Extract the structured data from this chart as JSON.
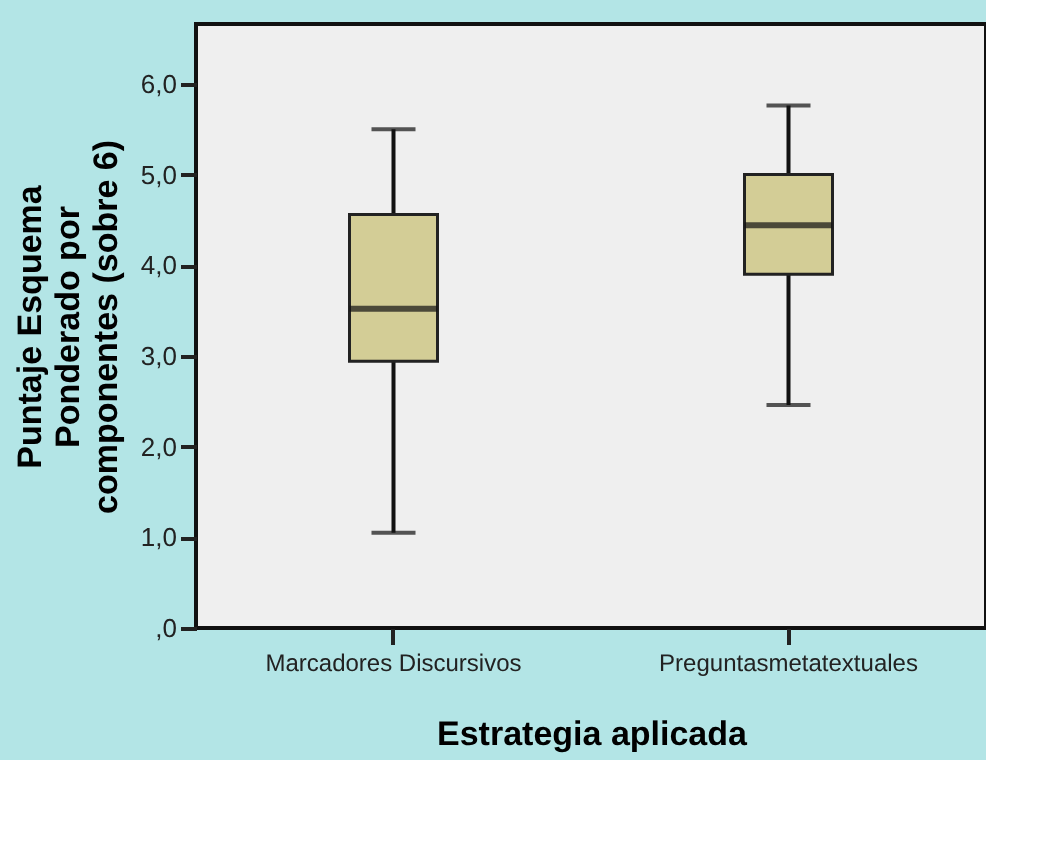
{
  "chart_data": {
    "type": "box",
    "xlabel": "Estrategia aplicada",
    "ylabel": "Puntaje Esquema Ponderado por componentes (sobre 6)",
    "categories": [
      "Marcadores Discursivos",
      "Preguntasmetatextuales"
    ],
    "color": "#d3cd96",
    "boxes": [
      {
        "low": 1.05,
        "q1": 2.94,
        "median": 3.52,
        "q3": 4.56,
        "high": 5.5
      },
      {
        "low": 2.46,
        "q1": 3.9,
        "median": 4.44,
        "q3": 5.0,
        "high": 5.76
      }
    ],
    "ylim": [
      0,
      6.66
    ],
    "yticks": [
      {
        "value": 0,
        "label": ",0"
      },
      {
        "value": 1,
        "label": "1,0"
      },
      {
        "value": 2,
        "label": "2,0"
      },
      {
        "value": 3,
        "label": "3,0"
      },
      {
        "value": 4,
        "label": "4,0"
      },
      {
        "value": 5,
        "label": "5,0"
      },
      {
        "value": 6,
        "label": "6,0"
      }
    ],
    "grid": false
  }
}
